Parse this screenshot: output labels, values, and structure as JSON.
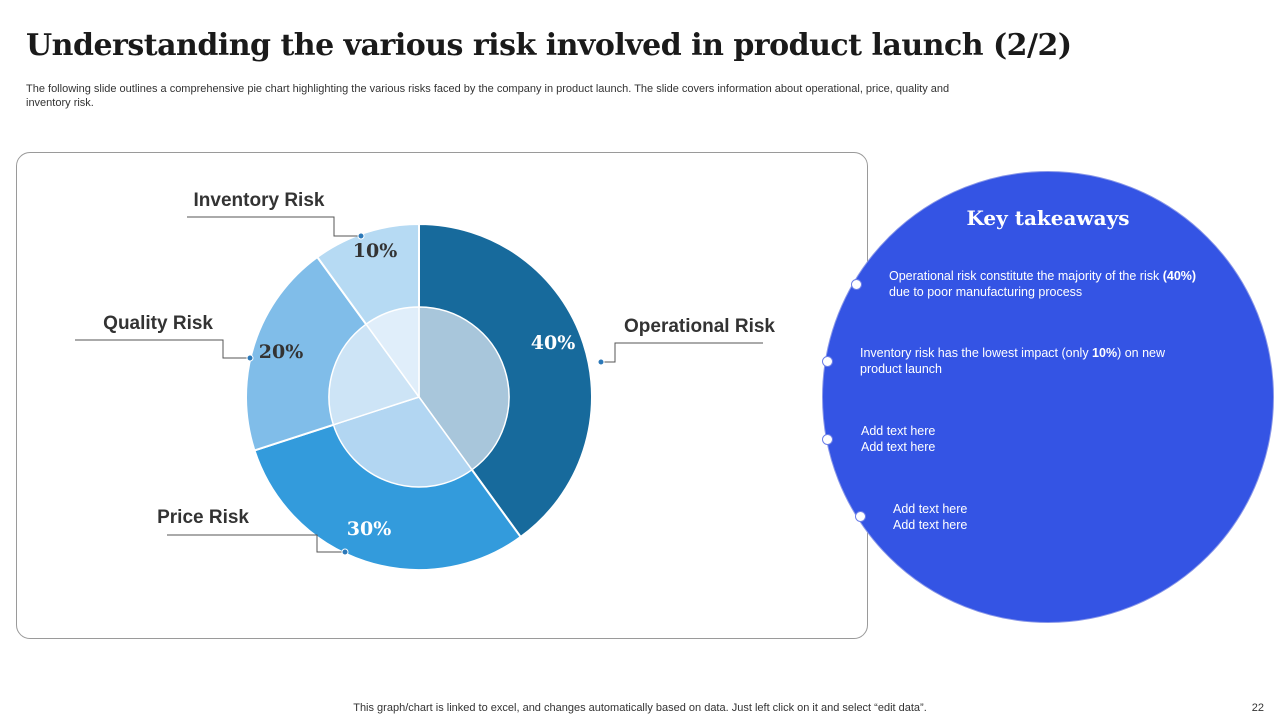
{
  "slide": {
    "title": "Understanding the various risk involved in product launch (2/2)",
    "subtitle": "The following slide outlines a comprehensive pie chart highlighting the various risks faced by the company in product launch. The slide covers information about operational, price, quality and inventory risk.",
    "footnote": "This graph/chart is linked to excel,  and changes automatically based on data. Just left click on it and select “edit data”.",
    "page_number": "22"
  },
  "chart_data": {
    "type": "pie",
    "title": "",
    "categories": [
      "Operational Risk",
      "Price Risk",
      "Quality Risk",
      "Inventory Risk"
    ],
    "values": [
      40,
      30,
      20,
      10
    ],
    "value_labels": [
      "40%",
      "30%",
      "20%",
      "10%"
    ],
    "start_angle": "12 o'clock, clockwise",
    "colors": [
      "#176a9c",
      "#339bdc",
      "#80bde9",
      "#b6daf3"
    ],
    "inner_colors": [
      "#a8c6db",
      "#b2d6f2",
      "#cde4f6",
      "#e0eefa"
    ],
    "label_colors": [
      "#ffffff",
      "#ffffff",
      "#333333",
      "#333333"
    ]
  },
  "takeaways": {
    "title": "Key takeaways",
    "items": [
      {
        "pre": "Operational risk constitute the majority of the risk ",
        "bold": "(40%)",
        "post": " due to poor manufacturing process"
      },
      {
        "pre": "Inventory risk has the lowest impact (only ",
        "bold": "10%",
        "post": ") on new product launch"
      },
      {
        "pre": "Add text here Add text here",
        "bold": "",
        "post": ""
      },
      {
        "pre": "Add text here Add text here",
        "bold": "",
        "post": ""
      }
    ],
    "color": "#3454e4"
  }
}
